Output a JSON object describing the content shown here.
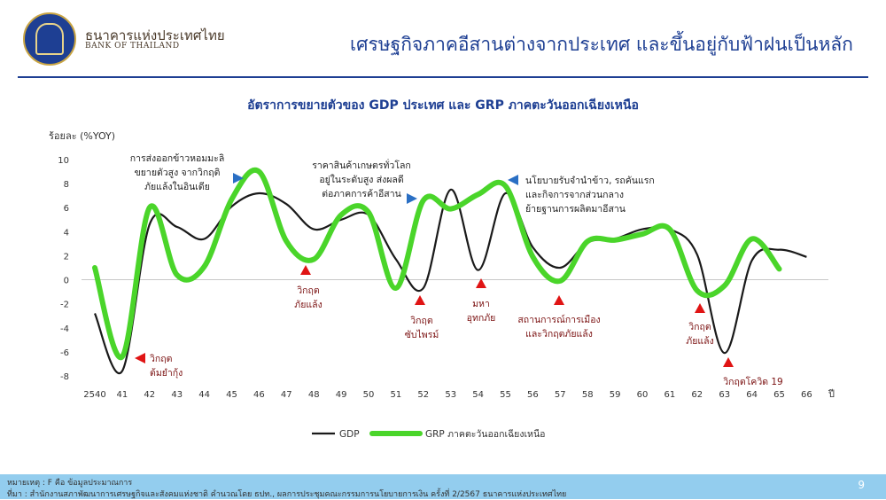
{
  "header": {
    "bank_name_th": "ธนาคารแห่งประเทศไทย",
    "bank_name_en": "BANK OF THAILAND",
    "slide_title": "เศรษฐกิจภาคอีสานต่างจากประเทศ และขึ้นอยู่กับฟ้าฝนเป็นหลัก"
  },
  "footer": {
    "note": "หมายเหตุ : F คือ ข้อมูลประมาณการ",
    "source": "ที่มา : สำนักงานสภาพัฒนาการเศรษฐกิจและสังคมแห่งชาติ คำนวณโดย ธปท., ผลการประชุมคณะกรรมการนโยบายการเงิน ครั้งที่ 2/2567 ธนาคารแห่งประเทศไทย",
    "page": "9"
  },
  "colors": {
    "brand": "#1e3f93",
    "gdp": "#1a1a1a",
    "grp": "#4ad52a",
    "crisis": "#e01414",
    "policy": "#2a6fc4",
    "footer": "#93cdee"
  },
  "chart_data": {
    "type": "line",
    "title": "อัตราการขยายตัวของ GDP ประเทศ และ GRP ภาคตะวันออกเฉียงเหนือ",
    "ylabel": "ร้อยละ (%YOY)",
    "xlabel": "ปี",
    "ylim": [
      -8,
      10
    ],
    "yticks": [
      "10",
      "8",
      "6",
      "4",
      "2",
      "0",
      "-2",
      "-4",
      "-6",
      "-8"
    ],
    "x": [
      "2540",
      "41",
      "42",
      "43",
      "44",
      "45",
      "46",
      "47",
      "48",
      "49",
      "50",
      "51",
      "52",
      "53",
      "54",
      "55",
      "56",
      "57",
      "58",
      "59",
      "60",
      "61",
      "62",
      "63",
      "64",
      "65",
      "66"
    ],
    "series": [
      {
        "name": "GDP",
        "values": [
          -2.8,
          -7.6,
          4.6,
          4.4,
          3.4,
          6.1,
          7.2,
          6.3,
          4.2,
          5.0,
          5.4,
          1.7,
          -0.7,
          7.5,
          0.8,
          7.2,
          2.7,
          1.0,
          3.1,
          3.4,
          4.2,
          4.2,
          2.1,
          -6.1,
          1.6,
          2.5,
          1.9
        ]
      },
      {
        "name": "GRP ภาคตะวันออกเฉียงเหนือ",
        "values": [
          1.0,
          -6.4,
          6.0,
          0.4,
          1.1,
          6.7,
          9.0,
          3.2,
          1.7,
          5.4,
          5.6,
          -0.7,
          6.6,
          5.9,
          7.1,
          7.8,
          1.9,
          -0.1,
          3.2,
          3.3,
          3.8,
          4.2,
          -0.9,
          -0.5,
          3.4,
          0.9,
          null
        ]
      }
    ],
    "legend": [
      "GDP",
      "GRP ภาคตะวันออกเฉียงเหนือ"
    ],
    "legend_position": "bottom",
    "annotations": [
      {
        "label": "วิกฤต ต้มยำกุ้ง",
        "year": "41",
        "kind": "crisis"
      },
      {
        "label": "วิกฤต ภัยแล้ง",
        "year": "48",
        "kind": "crisis"
      },
      {
        "label": "วิกฤต ซับไพรม์",
        "year": "52",
        "kind": "crisis"
      },
      {
        "label": "มหา อุทกภัย",
        "year": "54",
        "kind": "crisis"
      },
      {
        "label": "สถานการณ์การเมือง และวิกฤตภัยแล้ง",
        "year": "57",
        "kind": "crisis"
      },
      {
        "label": "วิกฤต ภัยแล้ง",
        "year": "62",
        "kind": "crisis"
      },
      {
        "label": "วิกฤตโควิด 19",
        "year": "63",
        "kind": "crisis"
      },
      {
        "label": "การส่งออกข้าวหอมมะลิ ขยายตัวสูง จากวิกฤติ ภัยแล้งในอินเดีย",
        "year": "45",
        "kind": "policy"
      },
      {
        "label": "ราคาสินค้าเกษตรทั่วโลก อยู่ในระดับสูง ส่งผลดี ต่อภาคการค้าอีสาน",
        "year": "51",
        "kind": "policy"
      },
      {
        "label": "นโยบายรับจำนำข้าว, รถคันแรก และกิจการจากส่วนกลาง ย้ายฐานการผลิตมาอีสาน",
        "year": "55",
        "kind": "policy"
      }
    ]
  }
}
